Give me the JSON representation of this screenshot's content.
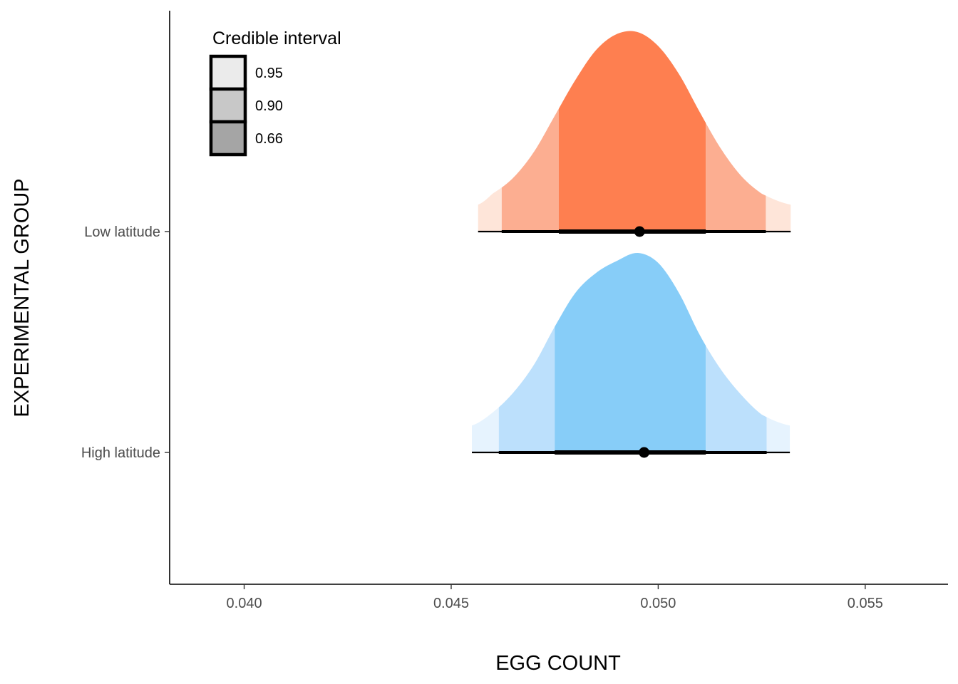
{
  "chart_data": {
    "type": "density",
    "xlabel": "EGG COUNT",
    "ylabel": "EXPERIMENTAL GROUP",
    "xlim": [
      0.0382,
      0.057
    ],
    "x_ticks": [
      0.04,
      0.045,
      0.05,
      0.055
    ],
    "x_tick_labels": [
      "0.040",
      "0.045",
      "0.050",
      "0.055"
    ],
    "categories": [
      "Low latitude",
      "High latitude"
    ],
    "grid": false,
    "legend": {
      "title": "Credible interval",
      "placement": "top-left",
      "entries": [
        {
          "label": "0.95",
          "color": "#ebebeb"
        },
        {
          "label": "0.90",
          "color": "#c8c8c8"
        },
        {
          "label": "0.66",
          "color": "#a5a5a5"
        }
      ]
    },
    "series": [
      {
        "group": "Low latitude",
        "point_estimate": 0.04955,
        "colors": {
          "outer": "#fee5d9",
          "mid": "#fcae91",
          "inner": "#fe7f50"
        },
        "intervals": {
          "0.66": [
            0.0476,
            0.05115
          ],
          "0.90": [
            0.04622,
            0.0526
          ],
          "0.95": [
            0.04565,
            0.0532
          ]
        },
        "density": {
          "x": [
            0.04565,
            0.046,
            0.0465,
            0.047,
            0.0475,
            0.048,
            0.0485,
            0.049,
            0.0495,
            0.05,
            0.0505,
            0.051,
            0.0515,
            0.052,
            0.0525,
            0.0532
          ],
          "y": [
            0.135,
            0.19,
            0.27,
            0.4,
            0.58,
            0.76,
            0.91,
            0.99,
            1.0,
            0.93,
            0.79,
            0.6,
            0.42,
            0.28,
            0.19,
            0.135
          ]
        }
      },
      {
        "group": "High latitude",
        "point_estimate": 0.04966,
        "colors": {
          "outer": "#e6f3fe",
          "mid": "#bce0fc",
          "inner": "#87cdf8"
        },
        "intervals": {
          "0.66": [
            0.0475,
            0.05115
          ],
          "0.90": [
            0.04615,
            0.05262
          ],
          "0.95": [
            0.0455,
            0.05318
          ]
        },
        "density": {
          "x": [
            0.0455,
            0.046,
            0.0465,
            0.047,
            0.0475,
            0.048,
            0.0485,
            0.049,
            0.0495,
            0.05,
            0.0505,
            0.051,
            0.0515,
            0.052,
            0.0525,
            0.05318
          ],
          "y": [
            0.135,
            0.2,
            0.3,
            0.44,
            0.63,
            0.8,
            0.9,
            0.96,
            1.0,
            0.95,
            0.8,
            0.59,
            0.42,
            0.29,
            0.19,
            0.135
          ]
        }
      }
    ]
  }
}
